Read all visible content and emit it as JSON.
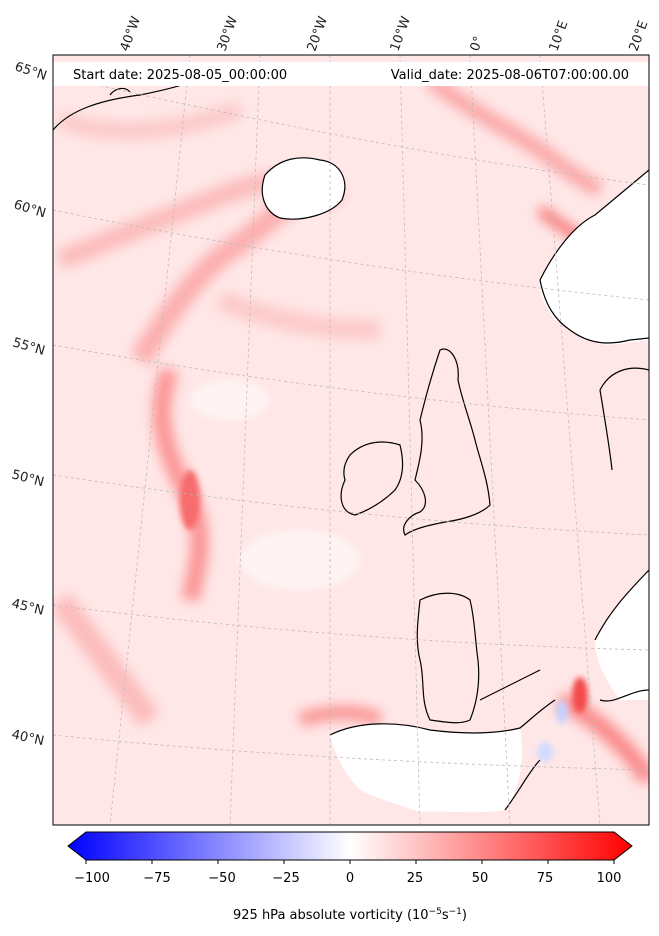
{
  "header": {
    "start_date": "Start date: 2025-08-05_00:00:00",
    "valid_date": "Valid_date: 2025-08-06T07:00:00.00"
  },
  "longitude_labels": [
    "40°W",
    "30°W",
    "20°W",
    "10°W",
    "0°",
    "10°E",
    "20°E"
  ],
  "latitude_labels": [
    "65°N",
    "60°N",
    "55°N",
    "50°N",
    "45°N",
    "40°N"
  ],
  "colorbar": {
    "title_main": "925 hPa absolute vorticity (10",
    "title_exp1": "−5",
    "title_mid": "s",
    "title_exp2": "−1",
    "title_end": ")",
    "ticks": [
      "−100",
      "−75",
      "−50",
      "−25",
      "0",
      "25",
      "50",
      "75",
      "100"
    ],
    "min": -100,
    "max": 100,
    "colormap": "bwr",
    "extend": "both"
  },
  "colors": {
    "neg_extreme": "#0000ff",
    "zero": "#ffffff",
    "pos_extreme": "#ff0000",
    "land_mask": "#ffffff",
    "coastline": "#000000"
  }
}
